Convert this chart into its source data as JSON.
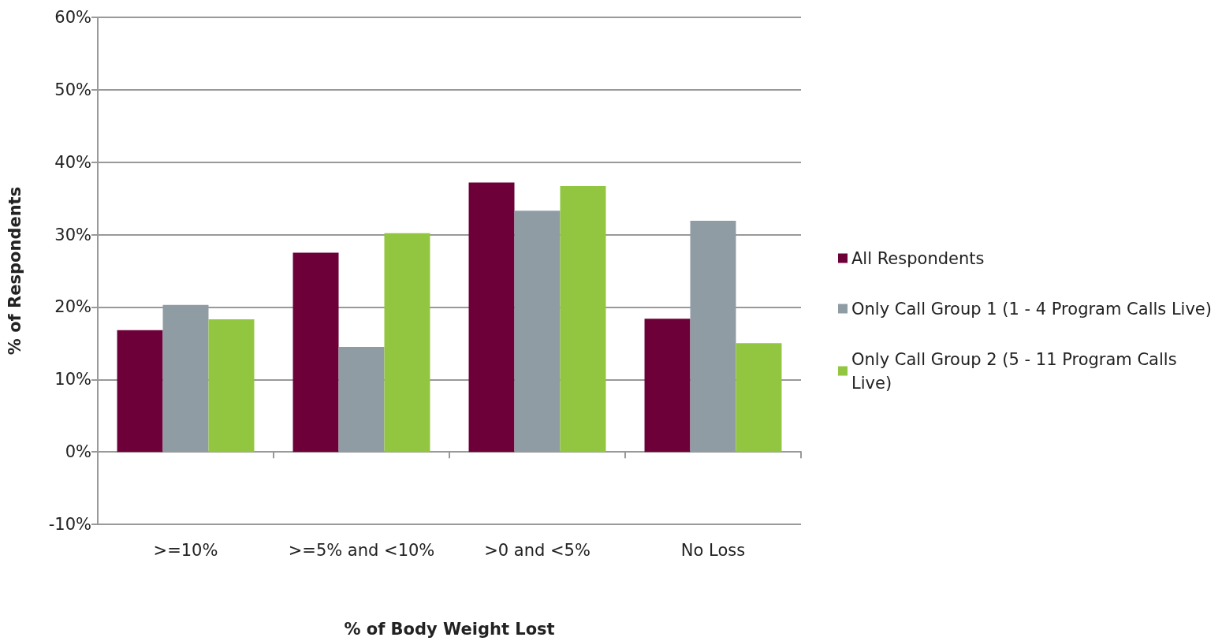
{
  "chart_data": {
    "type": "bar",
    "xlabel": "% of Body Weight Lost",
    "ylabel": "% of Respondents",
    "categories": [
      ">=10%",
      ">=5% and <10%",
      ">0 and <5%",
      "No Loss"
    ],
    "series": [
      {
        "name": "All Respondents",
        "color": "#6d0039",
        "values": [
          16.8,
          27.5,
          37.2,
          18.4
        ]
      },
      {
        "name": "Only Call Group 1 (1 - 4 Program Calls Live)",
        "color": "#909ca4",
        "values": [
          20.3,
          14.5,
          33.3,
          31.9
        ]
      },
      {
        "name": "Only Call Group 2 (5 - 11 Program Calls Live)",
        "color": "#92c640",
        "values": [
          18.3,
          30.2,
          36.7,
          15.0
        ]
      }
    ],
    "ylim": [
      -10,
      60
    ],
    "yticks": [
      {
        "value": -10,
        "label": "-10%"
      },
      {
        "value": 0,
        "label": "0%"
      },
      {
        "value": 10,
        "label": "10%"
      },
      {
        "value": 20,
        "label": "20%"
      },
      {
        "value": 30,
        "label": "30%"
      },
      {
        "value": 40,
        "label": "40%"
      },
      {
        "value": 50,
        "label": "50%"
      },
      {
        "value": 60,
        "label": "60%"
      }
    ],
    "grid": "y",
    "legend": "right"
  }
}
